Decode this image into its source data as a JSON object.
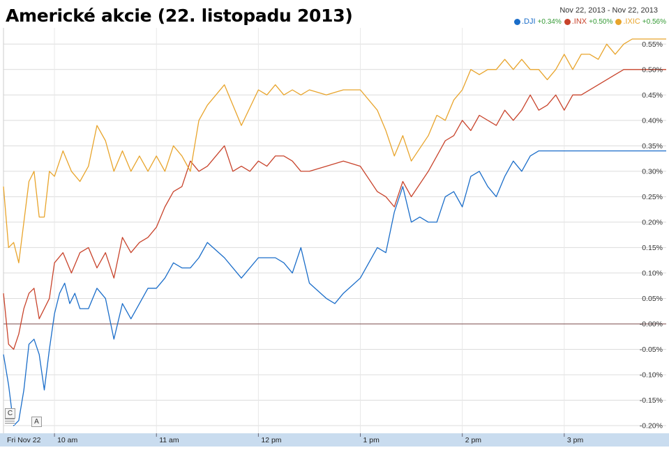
{
  "title": "Americké akcie (22. listopadu 2013)",
  "date_range": "Nov 22, 2013  -  Nov 22, 2013",
  "legend": [
    {
      "name": ".DJI",
      "change": "+0.34%",
      "color": "#1a6dc9"
    },
    {
      "name": ".INX",
      "change": "+0.50%",
      "color": "#c8432b"
    },
    {
      "name": ".IXIC",
      "change": "+0.56%",
      "color": "#e8a42b"
    }
  ],
  "buttons": {
    "c": "C",
    "a": "A"
  },
  "chart_data": {
    "type": "line",
    "title": "Americké akcie (22. listopadu 2013)",
    "x_label_format": "clock",
    "x_start": "9:30",
    "x_end": "16:00",
    "x_tick_labels": [
      "Fri Nov 22",
      "10 am",
      "11 am",
      "12 pm",
      "1 pm",
      "2 pm",
      "3 pm"
    ],
    "y_tick_labels": [
      "0.55%",
      "0.50%",
      "0.45%",
      "0.40%",
      "0.35%",
      "0.30%",
      "0.25%",
      "0.20%",
      "0.15%",
      "0.10%",
      "0.05%",
      "-0.00%",
      "-0.05%",
      "-0.10%",
      "-0.15%",
      "-0.20%"
    ],
    "ylim": [
      -0.215,
      0.575
    ],
    "grid": true,
    "legend_position": "top-right",
    "series": [
      {
        "name": ".DJI",
        "color": "#1a6dc9",
        "x": [
          "9:30",
          "9:33",
          "9:36",
          "9:39",
          "9:42",
          "9:45",
          "9:48",
          "9:51",
          "9:54",
          "9:57",
          "10:00",
          "10:03",
          "10:06",
          "10:09",
          "10:12",
          "10:15",
          "10:20",
          "10:25",
          "10:30",
          "10:35",
          "10:40",
          "10:45",
          "10:50",
          "10:55",
          "11:00",
          "11:05",
          "11:10",
          "11:15",
          "11:20",
          "11:25",
          "11:30",
          "11:40",
          "11:50",
          "12:00",
          "12:10",
          "12:15",
          "12:20",
          "12:25",
          "12:30",
          "12:40",
          "12:45",
          "12:50",
          "13:00",
          "13:10",
          "13:15",
          "13:20",
          "13:25",
          "13:30",
          "13:35",
          "13:40",
          "13:45",
          "13:50",
          "13:55",
          "14:00",
          "14:05",
          "14:10",
          "14:15",
          "14:20",
          "14:25",
          "14:30",
          "14:35",
          "14:40",
          "14:45",
          "14:50",
          "14:55",
          "15:00",
          "15:05",
          "15:10",
          "15:15",
          "15:20",
          "15:25",
          "15:30",
          "15:35",
          "15:40",
          "15:45",
          "15:50",
          "15:55",
          "16:00"
        ],
        "y": [
          -0.06,
          -0.12,
          -0.2,
          -0.19,
          -0.13,
          -0.04,
          -0.03,
          -0.06,
          -0.13,
          -0.05,
          0.02,
          0.06,
          0.08,
          0.04,
          0.06,
          0.03,
          0.03,
          0.07,
          0.05,
          -0.03,
          0.04,
          0.01,
          0.04,
          0.07,
          0.07,
          0.09,
          0.12,
          0.11,
          0.11,
          0.13,
          0.16,
          0.13,
          0.09,
          0.13,
          0.13,
          0.12,
          0.1,
          0.15,
          0.08,
          0.05,
          0.04,
          0.06,
          0.09,
          0.15,
          0.14,
          0.22,
          0.27,
          0.2,
          0.21,
          0.2,
          0.2,
          0.25,
          0.26,
          0.23,
          0.29,
          0.3,
          0.27,
          0.25,
          0.29,
          0.32,
          0.3,
          0.33,
          0.34,
          0.34,
          0.34,
          0.34,
          0.34,
          0.34,
          0.34,
          0.34,
          0.34,
          0.34,
          0.34,
          0.34,
          0.34,
          0.34,
          0.34,
          0.34
        ]
      },
      {
        "name": ".INX",
        "color": "#c8432b",
        "x": [
          "9:30",
          "9:33",
          "9:36",
          "9:39",
          "9:42",
          "9:45",
          "9:48",
          "9:51",
          "9:54",
          "9:57",
          "10:00",
          "10:05",
          "10:10",
          "10:15",
          "10:20",
          "10:25",
          "10:30",
          "10:35",
          "10:40",
          "10:45",
          "10:50",
          "10:55",
          "11:00",
          "11:05",
          "11:10",
          "11:15",
          "11:20",
          "11:25",
          "11:30",
          "11:40",
          "11:45",
          "11:50",
          "11:55",
          "12:00",
          "12:05",
          "12:10",
          "12:15",
          "12:20",
          "12:25",
          "12:30",
          "12:40",
          "12:50",
          "13:00",
          "13:10",
          "13:15",
          "13:20",
          "13:25",
          "13:30",
          "13:40",
          "13:45",
          "13:50",
          "13:55",
          "14:00",
          "14:05",
          "14:10",
          "14:20",
          "14:25",
          "14:30",
          "14:35",
          "14:40",
          "14:45",
          "14:50",
          "14:55",
          "15:00",
          "15:05",
          "15:10",
          "15:20",
          "15:30",
          "15:35",
          "15:40",
          "15:45",
          "15:50",
          "15:55",
          "16:00"
        ],
        "y": [
          0.06,
          -0.04,
          -0.05,
          -0.02,
          0.03,
          0.06,
          0.07,
          0.01,
          0.03,
          0.05,
          0.12,
          0.14,
          0.1,
          0.14,
          0.15,
          0.11,
          0.14,
          0.09,
          0.17,
          0.14,
          0.16,
          0.17,
          0.19,
          0.23,
          0.26,
          0.27,
          0.32,
          0.3,
          0.31,
          0.35,
          0.3,
          0.31,
          0.3,
          0.32,
          0.31,
          0.33,
          0.33,
          0.32,
          0.3,
          0.3,
          0.31,
          0.32,
          0.31,
          0.26,
          0.25,
          0.23,
          0.28,
          0.25,
          0.3,
          0.33,
          0.36,
          0.37,
          0.4,
          0.38,
          0.41,
          0.39,
          0.42,
          0.4,
          0.42,
          0.45,
          0.42,
          0.43,
          0.45,
          0.42,
          0.45,
          0.45,
          0.47,
          0.49,
          0.5,
          0.5,
          0.5,
          0.5,
          0.5,
          0.5
        ]
      },
      {
        "name": ".IXIC",
        "color": "#e8a42b",
        "x": [
          "9:30",
          "9:33",
          "9:36",
          "9:39",
          "9:42",
          "9:45",
          "9:48",
          "9:51",
          "9:54",
          "9:57",
          "10:00",
          "10:05",
          "10:10",
          "10:15",
          "10:20",
          "10:25",
          "10:30",
          "10:35",
          "10:40",
          "10:45",
          "10:50",
          "10:55",
          "11:00",
          "11:05",
          "11:10",
          "11:15",
          "11:20",
          "11:25",
          "11:30",
          "11:40",
          "11:50",
          "12:00",
          "12:05",
          "12:10",
          "12:15",
          "12:20",
          "12:25",
          "12:30",
          "12:40",
          "12:50",
          "13:00",
          "13:10",
          "13:15",
          "13:20",
          "13:25",
          "13:30",
          "13:40",
          "13:45",
          "13:50",
          "13:55",
          "14:00",
          "14:05",
          "14:10",
          "14:15",
          "14:20",
          "14:25",
          "14:30",
          "14:35",
          "14:40",
          "14:45",
          "14:50",
          "14:55",
          "15:00",
          "15:05",
          "15:10",
          "15:15",
          "15:20",
          "15:25",
          "15:30",
          "15:35",
          "15:40",
          "15:45",
          "15:50",
          "15:55",
          "16:00"
        ],
        "y": [
          0.27,
          0.15,
          0.16,
          0.12,
          0.2,
          0.28,
          0.3,
          0.21,
          0.21,
          0.3,
          0.29,
          0.34,
          0.3,
          0.28,
          0.31,
          0.39,
          0.36,
          0.3,
          0.34,
          0.3,
          0.33,
          0.3,
          0.33,
          0.3,
          0.35,
          0.33,
          0.3,
          0.4,
          0.43,
          0.47,
          0.39,
          0.46,
          0.45,
          0.47,
          0.45,
          0.46,
          0.45,
          0.46,
          0.45,
          0.46,
          0.46,
          0.42,
          0.38,
          0.33,
          0.37,
          0.32,
          0.37,
          0.41,
          0.4,
          0.44,
          0.46,
          0.5,
          0.49,
          0.5,
          0.5,
          0.52,
          0.5,
          0.52,
          0.5,
          0.5,
          0.48,
          0.5,
          0.53,
          0.5,
          0.53,
          0.53,
          0.52,
          0.55,
          0.53,
          0.55,
          0.56,
          0.56,
          0.56,
          0.56,
          0.56
        ]
      }
    ]
  }
}
